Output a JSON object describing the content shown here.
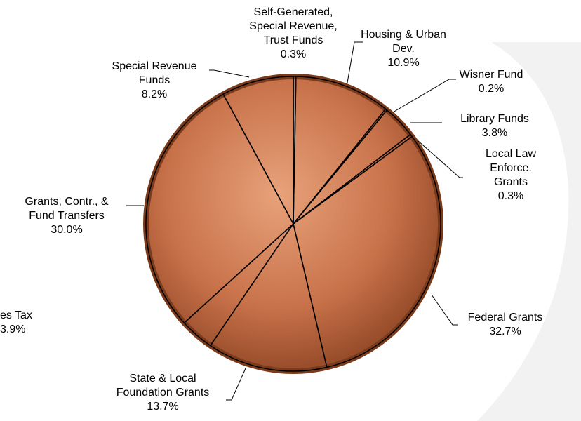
{
  "chart_data": {
    "type": "pie",
    "categories": [
      "Self-Generated,\nSpecial Revenue,\nTrust Funds",
      "Housing & Urban\nDev.",
      "Wisner Fund",
      "Library Funds",
      "Local Law\nEnforce. Grants",
      "Federal Grants",
      "State & Local\nFoundation Grants",
      "es Tax",
      "Grants, Contr., &\nFund Transfers",
      "Special Revenue\nFunds"
    ],
    "values": [
      0.3,
      10.9,
      0.2,
      3.8,
      0.3,
      32.7,
      13.7,
      3.9,
      30.0,
      8.2
    ],
    "value_labels": [
      "0.3%",
      "10.9%",
      "0.2%",
      "3.8%",
      "0.3%",
      "32.7%",
      "13.7%",
      "3.9%",
      "30.0%",
      "8.2%"
    ],
    "color": "#000000"
  }
}
